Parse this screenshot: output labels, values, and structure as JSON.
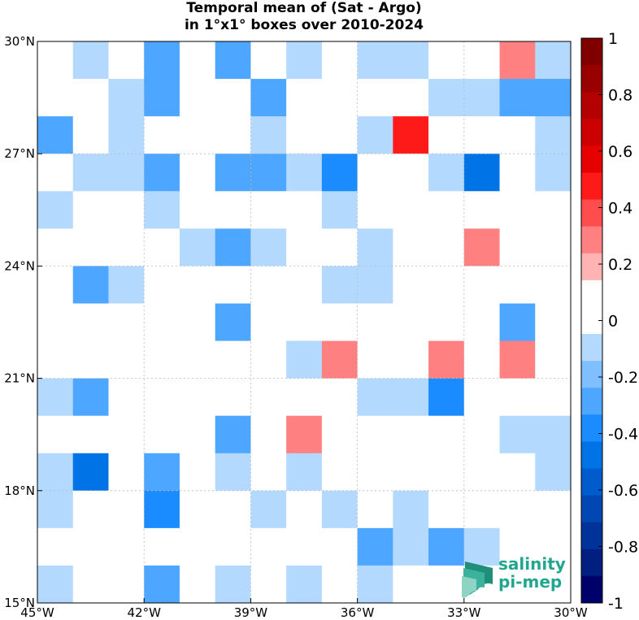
{
  "title": {
    "line1": "Temporal mean of (Sat - Argo)",
    "line2": "in 1°x1° boxes over 2010-2024"
  },
  "logo": {
    "line1": "salinity",
    "line2": "pi-mep"
  },
  "chart_data": {
    "type": "heatmap",
    "title": "Temporal mean of (Sat - Argo) in 1°x1° boxes over 2010-2024",
    "xlabel": "",
    "ylabel": "",
    "xlim": [
      -45,
      -30
    ],
    "ylim": [
      15,
      30
    ],
    "x_ticks": [
      -45,
      -42,
      -39,
      -36,
      -33,
      -30
    ],
    "x_tick_labels": [
      "45°W",
      "42°W",
      "39°W",
      "36°W",
      "33°W",
      "30°W"
    ],
    "y_ticks": [
      15,
      18,
      21,
      24,
      27,
      30
    ],
    "y_tick_labels": [
      "15°N",
      "18°N",
      "21°N",
      "24°N",
      "27°N",
      "30°N"
    ],
    "grid": true,
    "cell_size_deg": 1,
    "colorbar": {
      "range": [
        -1,
        1
      ],
      "ticks": [
        1,
        0.8,
        0.6,
        0.4,
        0.2,
        0,
        -0.2,
        -0.4,
        -0.6,
        -0.8,
        -1
      ],
      "tick_labels": [
        "1",
        "0.8",
        "0.6",
        "0.4",
        "0.2",
        "0",
        "-0.2",
        "-0.4",
        "-0.6",
        "-0.8",
        "-1"
      ],
      "colors": [
        "#800000",
        "#990000",
        "#b30000",
        "#cc0000",
        "#e60000",
        "#ff1a1a",
        "#ff4d4d",
        "#ff8080",
        "#ffb3b3",
        "#ffffff",
        "#ffffff",
        "#b3d9ff",
        "#80bfff",
        "#4da6ff",
        "#1a8cff",
        "#0073e6",
        "#005ccc",
        "#0047b3",
        "#003399",
        "#001f80",
        "#00006a"
      ]
    },
    "rows_lat_north": [
      30,
      29,
      28,
      27,
      26,
      25,
      24,
      23,
      22,
      21,
      20,
      19,
      18,
      17,
      16
    ],
    "cols_lon_west": [
      45,
      44,
      43,
      42,
      41,
      40,
      39,
      38,
      37,
      36,
      35,
      34,
      33,
      32,
      31
    ],
    "values": [
      [
        0,
        -0.1,
        0,
        -0.3,
        0,
        -0.3,
        0,
        -0.1,
        0,
        -0.1,
        -0.1,
        0,
        0,
        0.3,
        -0.1
      ],
      [
        0.1,
        0,
        -0.1,
        -0.3,
        0,
        0,
        -0.3,
        0,
        0,
        0,
        0,
        -0.1,
        -0.1,
        -0.3,
        -0.3
      ],
      [
        -0.3,
        0.1,
        -0.1,
        0,
        0,
        0,
        -0.1,
        0,
        0.1,
        -0.1,
        0.5,
        0,
        0.1,
        0.1,
        -0.1
      ],
      [
        0.1,
        -0.1,
        -0.1,
        -0.3,
        0.1,
        -0.3,
        -0.3,
        -0.1,
        -0.4,
        0,
        0,
        -0.1,
        -0.5,
        0.1,
        -0.1
      ],
      [
        -0.1,
        0,
        0,
        -0.1,
        0,
        0,
        0,
        0,
        -0.1,
        0,
        0,
        0,
        0,
        0,
        0
      ],
      [
        0,
        0,
        0.1,
        0,
        -0.1,
        -0.3,
        -0.1,
        0,
        0,
        -0.1,
        0,
        0.1,
        0.3,
        0.1,
        0
      ],
      [
        0,
        -0.3,
        -0.1,
        0,
        0,
        0,
        0,
        0,
        -0.1,
        -0.1,
        0,
        0,
        0,
        0,
        0
      ],
      [
        0,
        0,
        0,
        0,
        0,
        -0.3,
        0,
        0,
        0.1,
        0,
        0,
        0.1,
        0.1,
        -0.3,
        0
      ],
      [
        0,
        0,
        0,
        0,
        0,
        0,
        0,
        -0.1,
        0.3,
        0.1,
        0,
        0.3,
        0,
        0.3,
        0
      ],
      [
        -0.1,
        -0.3,
        0,
        0,
        0.1,
        0,
        0,
        0,
        0,
        -0.1,
        -0.1,
        -0.4,
        0,
        0,
        0
      ],
      [
        0.1,
        0.1,
        0,
        0,
        0,
        -0.3,
        0,
        0.3,
        0,
        0,
        0.1,
        0.1,
        0,
        -0.1,
        -0.1
      ],
      [
        -0.1,
        -0.5,
        0,
        -0.3,
        0,
        -0.1,
        0,
        -0.1,
        0,
        0.1,
        0,
        0.1,
        0,
        0,
        -0.1
      ],
      [
        -0.1,
        0,
        0,
        -0.4,
        0,
        0,
        -0.1,
        0,
        -0.1,
        0.1,
        -0.1,
        0,
        0,
        0,
        0
      ],
      [
        0,
        0,
        0,
        0.1,
        0.1,
        0,
        0.1,
        0.1,
        0,
        -0.3,
        -0.1,
        -0.3,
        -0.1,
        0,
        0
      ],
      [
        -0.1,
        0.1,
        0,
        -0.3,
        0,
        -0.1,
        0,
        -0.1,
        0.1,
        -0.1,
        0.1,
        0,
        0,
        0,
        0
      ]
    ]
  }
}
